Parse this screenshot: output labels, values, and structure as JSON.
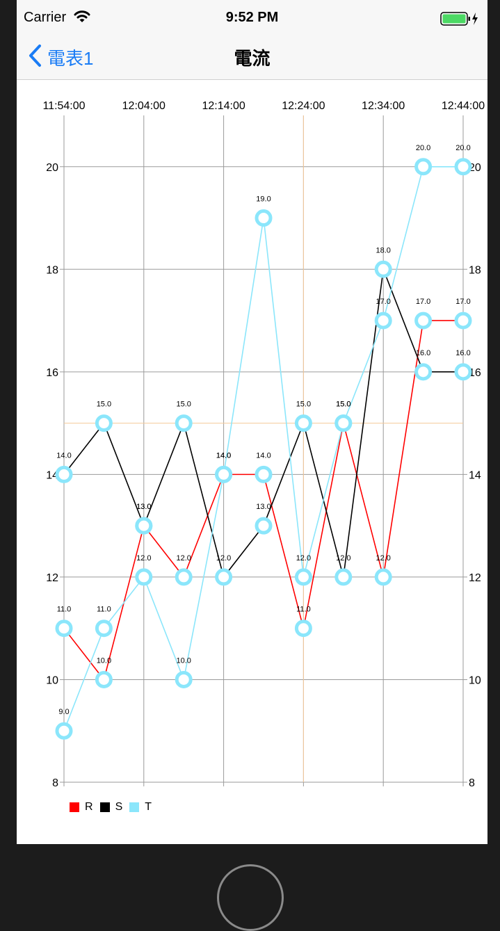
{
  "status_bar": {
    "carrier": "Carrier",
    "time": "9:52 PM"
  },
  "nav": {
    "back_label": "電表1",
    "title": "電流"
  },
  "chart_data": {
    "type": "line",
    "x_time_labels": [
      "11:54:00",
      "12:04:00",
      "12:14:00",
      "12:24:00",
      "12:34:00",
      "12:44:00"
    ],
    "point_count": 11,
    "y_ticks": [
      8,
      10,
      12,
      14,
      16,
      18,
      20
    ],
    "ylim": [
      8,
      21
    ],
    "grid": true,
    "highlight": {
      "x_index": 6,
      "y": 15
    },
    "legend_placement": "bottom-left",
    "series": [
      {
        "name": "R",
        "color": "#ff0000",
        "values": [
          11,
          10,
          13,
          12,
          14,
          14,
          11,
          15,
          12,
          17,
          17
        ]
      },
      {
        "name": "S",
        "color": "#000000",
        "values": [
          14,
          15,
          13,
          15,
          12,
          13,
          15,
          12,
          18,
          16,
          16
        ]
      },
      {
        "name": "T",
        "color": "#8be6fb",
        "values": [
          9,
          11,
          12,
          10,
          14,
          19,
          12,
          15,
          17,
          20,
          20
        ]
      }
    ],
    "point_labels": [
      [
        "11.0",
        "10.0",
        "13.0",
        "12.0",
        "14.0",
        "14.0",
        "11.0",
        "15.0",
        "12.0",
        "17.0",
        "17.0"
      ],
      [
        "14.0",
        "15.0",
        "13.0",
        "15.0",
        "12.0",
        "13.0",
        "15.0",
        "12.0",
        "18.0",
        "16.0",
        "16.0"
      ],
      [
        "9.0",
        "11.0",
        "12.0",
        "10.0",
        "14.0",
        "19.0",
        "12.0",
        "15.0",
        "17.0",
        "20.0",
        "20.0"
      ]
    ]
  }
}
